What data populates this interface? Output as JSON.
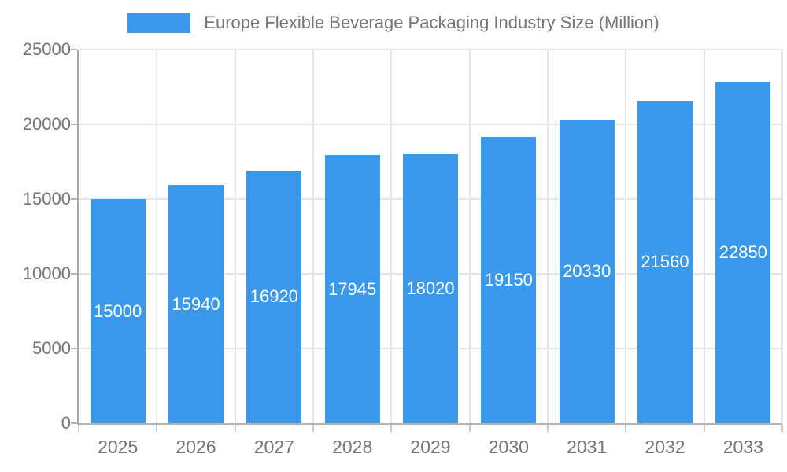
{
  "chart_data": {
    "type": "bar",
    "legend_label": "Europe Flexible Beverage Packaging Industry Size (Million)",
    "categories": [
      "2025",
      "2026",
      "2027",
      "2028",
      "2029",
      "2030",
      "2031",
      "2032",
      "2033"
    ],
    "values": [
      15000,
      15940,
      16920,
      17945,
      18020,
      19150,
      20330,
      21560,
      22850
    ],
    "value_labels": [
      "15000",
      "15940",
      "16920",
      "17945",
      "18020",
      "19150",
      "20330",
      "21560",
      "22850"
    ],
    "ylim": [
      0,
      25000
    ],
    "yticks": [
      0,
      5000,
      10000,
      15000,
      20000,
      25000
    ],
    "ytick_labels": [
      "0",
      "5000",
      "10000",
      "15000",
      "20000",
      "25000"
    ],
    "xlabel": "",
    "ylabel": "",
    "grid": "on",
    "legend_position": "top",
    "colors": {
      "bar": "#3b99ec",
      "bar_value_text": "#ffffff",
      "axis_text": "#757575",
      "legend_text": "#757575",
      "gridline": "#e6e6e6",
      "y_axis_line": "#a6a6a6",
      "x_axis_line": "#b3b3b3",
      "tick_mark": "#cccccc",
      "background": "#ffffff"
    }
  }
}
